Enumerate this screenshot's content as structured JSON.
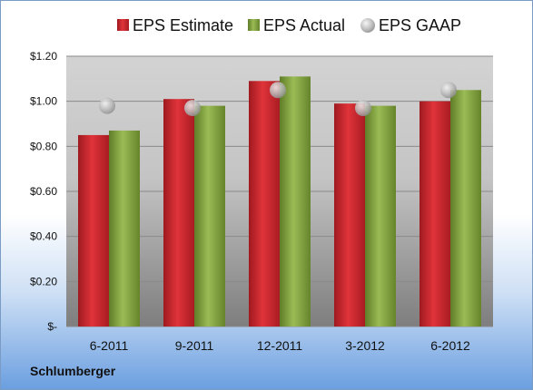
{
  "company": "Schlumberger",
  "colors": {
    "estimate": "#c8262c",
    "actual": "#7f9f3c",
    "gaap": "#b4b4b4"
  },
  "chart_data": {
    "type": "bar",
    "categories": [
      "6-2011",
      "9-2011",
      "12-2011",
      "3-2012",
      "6-2012"
    ],
    "series": [
      {
        "name": "EPS Estimate",
        "values": [
          0.85,
          1.01,
          1.09,
          0.99,
          1.0
        ]
      },
      {
        "name": "EPS Actual",
        "values": [
          0.87,
          0.98,
          1.11,
          0.98,
          1.05
        ]
      },
      {
        "name": "EPS GAAP",
        "kind": "marker",
        "values": [
          0.98,
          0.97,
          1.05,
          0.97,
          1.05
        ]
      }
    ],
    "ylim": [
      0,
      1.2
    ],
    "yticks": [
      0,
      0.2,
      0.4,
      0.6,
      0.8,
      1.0,
      1.2
    ],
    "ytick_labels": [
      "$-",
      "$0.20",
      "$0.40",
      "$0.60",
      "$0.80",
      "$1.00",
      "$1.20"
    ],
    "legend_position": "top",
    "grid": true
  }
}
